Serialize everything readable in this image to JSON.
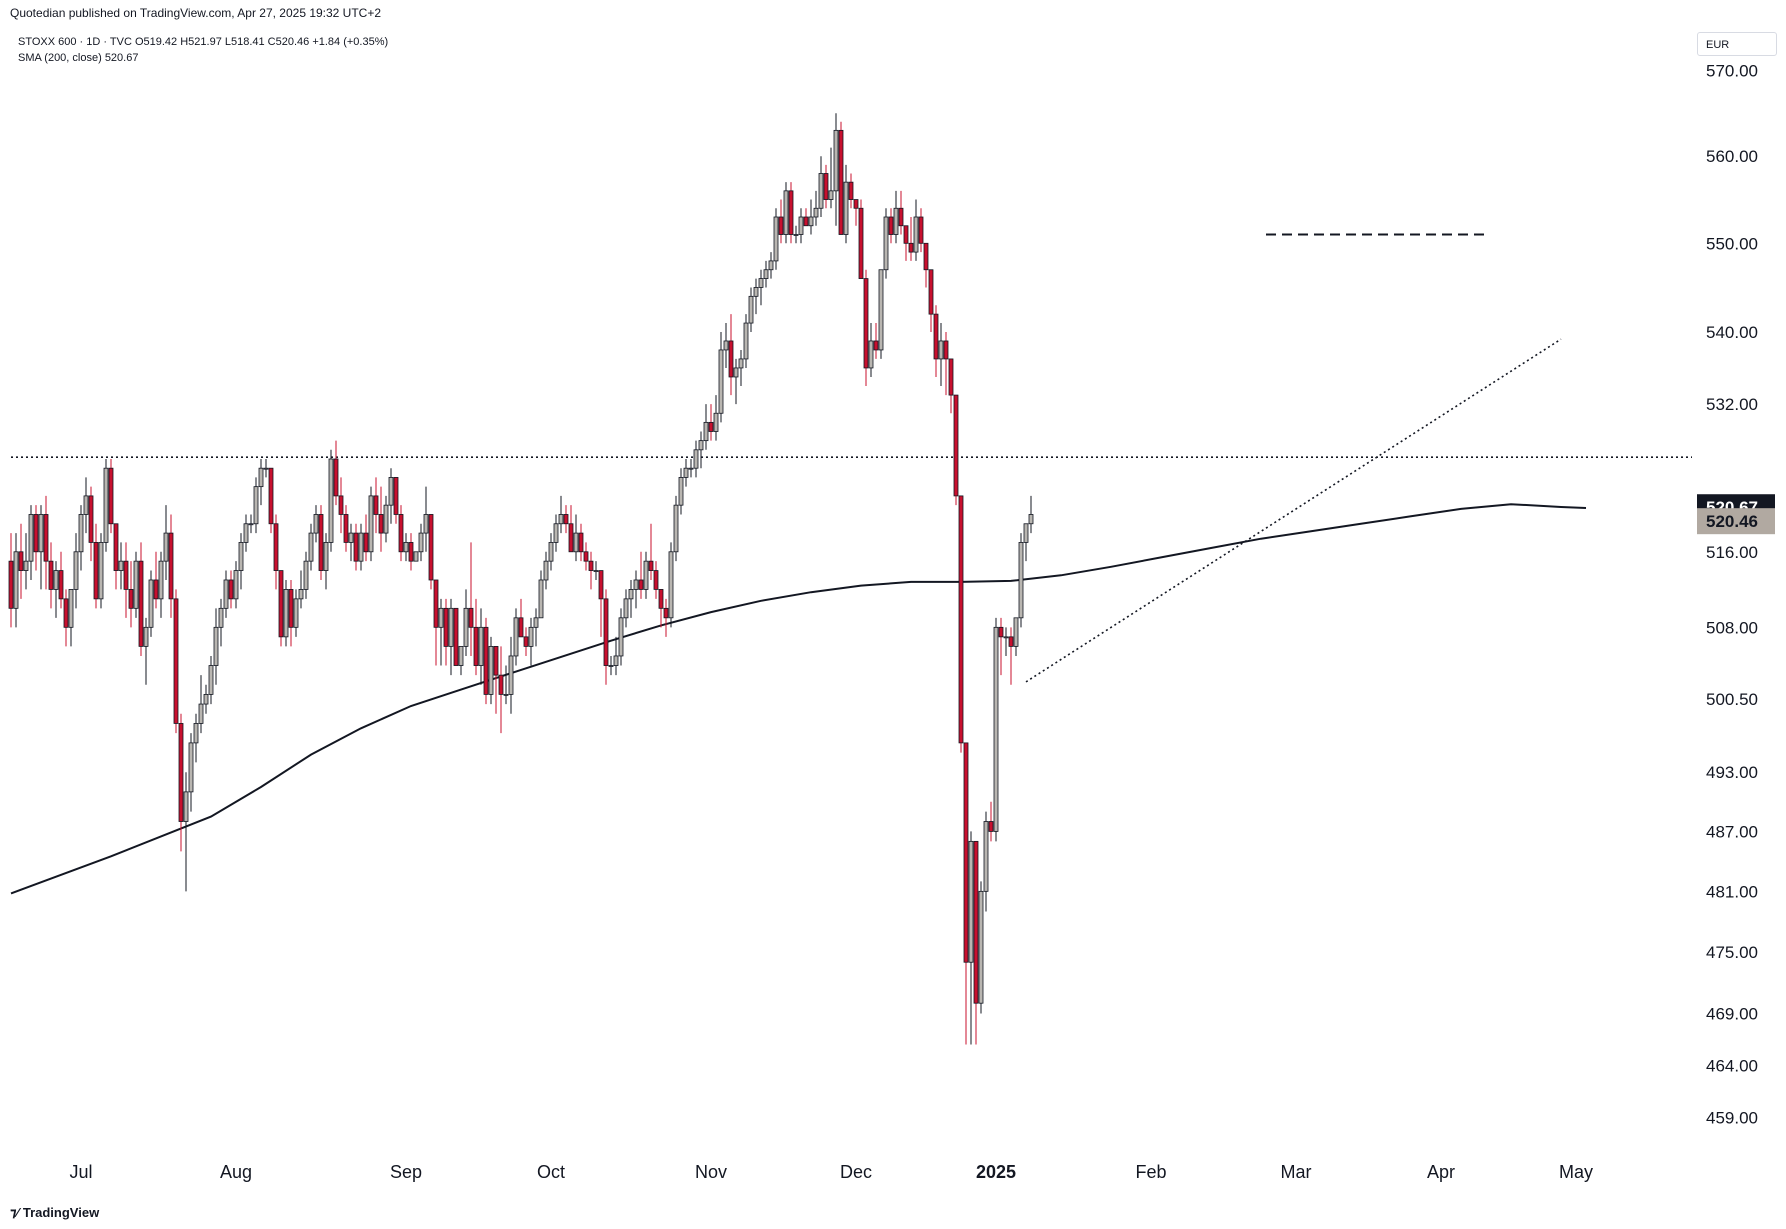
{
  "header": {
    "publisher_line": "Quotedian published on TradingView.com, Apr 27, 2025 19:32 UTC+2"
  },
  "legend": {
    "line1": "STOXX 600 · 1D · TVC  O519.42  H521.97  L518.41  C520.46  +1.84 (+0.35%)",
    "line2": "SMA (200, close)  520.67"
  },
  "currency": "EUR",
  "footer": {
    "brand": "TradingView",
    "brand_icon": "tradingview-logo-icon"
  },
  "colors": {
    "up_fill": "#b9b6b1",
    "down_fill": "#c8102e",
    "outline": "#131722",
    "sma": "#131722",
    "sma_label_bg": "#131722",
    "price_label_bg": "#b1a9a1"
  },
  "chart_data": {
    "type": "candlestick",
    "title": "",
    "xlabel": "",
    "ylabel": "",
    "ylim": [
      455,
      576
    ],
    "y_scale": "log",
    "yticks": [
      "570.00",
      "560.00",
      "550.00",
      "540.00",
      "532.00",
      "520.67",
      "520.46",
      "516.00",
      "508.00",
      "500.50",
      "493.00",
      "487.00",
      "481.00",
      "475.00",
      "469.00",
      "464.00",
      "459.00"
    ],
    "xticks": [
      {
        "label": "Jul",
        "i": 14
      },
      {
        "label": "Aug",
        "i": 45
      },
      {
        "label": "Sep",
        "i": 79
      },
      {
        "label": "Oct",
        "i": 108
      },
      {
        "label": "Nov",
        "i": 140
      },
      {
        "label": "Dec",
        "i": 169
      },
      {
        "label": "2025",
        "i": 197
      },
      {
        "label": "Feb",
        "i": 228
      },
      {
        "label": "Mar",
        "i": 257
      },
      {
        "label": "Apr",
        "i": 286
      },
      {
        "label": "May",
        "i": 313
      }
    ],
    "ohlc": [
      [
        515,
        518,
        508,
        510
      ],
      [
        510,
        518,
        508,
        516
      ],
      [
        516,
        519,
        511,
        514
      ],
      [
        514,
        518,
        512,
        515
      ],
      [
        515,
        521,
        513,
        520
      ],
      [
        520,
        521,
        514,
        516
      ],
      [
        516,
        521,
        512,
        520
      ],
      [
        520,
        522,
        512,
        515
      ],
      [
        515,
        517,
        510,
        512
      ],
      [
        512,
        515,
        509,
        514
      ],
      [
        514,
        516,
        510,
        511
      ],
      [
        511,
        512,
        506,
        508
      ],
      [
        508,
        512,
        506,
        512
      ],
      [
        512,
        518,
        510,
        516
      ],
      [
        516,
        521,
        514,
        520
      ],
      [
        520,
        524,
        518,
        522
      ],
      [
        522,
        523,
        515,
        517
      ],
      [
        517,
        519,
        510,
        511
      ],
      [
        511,
        518,
        510,
        517
      ],
      [
        517,
        526,
        516,
        525
      ],
      [
        525,
        526,
        518,
        519
      ],
      [
        519,
        519,
        512,
        514
      ],
      [
        514,
        517,
        512,
        515
      ],
      [
        515,
        517,
        509,
        512
      ],
      [
        512,
        515,
        508,
        510
      ],
      [
        510,
        516,
        509,
        515
      ],
      [
        515,
        517,
        505,
        506
      ],
      [
        506,
        509,
        502,
        508
      ],
      [
        508,
        514,
        507,
        513
      ],
      [
        513,
        516,
        510,
        511
      ],
      [
        511,
        516,
        509,
        515
      ],
      [
        515,
        521,
        513,
        518
      ],
      [
        518,
        520,
        509,
        511
      ],
      [
        511,
        512,
        497,
        498
      ],
      [
        498,
        499,
        485,
        488
      ],
      [
        488,
        493,
        481,
        491
      ],
      [
        491,
        497,
        489,
        496
      ],
      [
        496,
        499,
        494,
        498
      ],
      [
        498,
        503,
        497,
        500
      ],
      [
        500,
        502,
        499,
        501
      ],
      [
        501,
        505,
        500,
        504
      ],
      [
        504,
        510,
        502,
        508
      ],
      [
        508,
        511,
        506,
        510
      ],
      [
        510,
        514,
        509,
        513
      ],
      [
        513,
        514,
        510,
        511
      ],
      [
        511,
        515,
        510,
        514
      ],
      [
        514,
        518,
        512,
        517
      ],
      [
        517,
        520,
        516,
        519
      ],
      [
        519,
        520,
        518,
        519
      ],
      [
        519,
        524,
        518,
        523
      ],
      [
        523,
        526,
        521,
        525
      ],
      [
        525,
        526,
        524,
        525
      ],
      [
        525,
        525,
        518,
        519
      ],
      [
        519,
        520,
        512,
        514
      ],
      [
        514,
        514,
        506,
        507
      ],
      [
        507,
        513,
        506,
        512
      ],
      [
        512,
        513,
        506,
        508
      ],
      [
        508,
        512,
        507,
        511
      ],
      [
        511,
        514,
        510,
        512
      ],
      [
        512,
        516,
        511,
        515
      ],
      [
        515,
        519,
        514,
        518
      ],
      [
        518,
        521,
        517,
        520
      ],
      [
        520,
        521,
        513,
        514
      ],
      [
        514,
        518,
        512,
        517
      ],
      [
        517,
        527,
        516,
        526
      ],
      [
        526,
        528,
        521,
        522
      ],
      [
        522,
        524,
        518,
        520
      ],
      [
        520,
        521,
        516,
        517
      ],
      [
        517,
        519,
        515,
        518
      ],
      [
        518,
        519,
        514,
        515
      ],
      [
        515,
        519,
        514,
        518
      ],
      [
        518,
        520,
        515,
        516
      ],
      [
        516,
        523,
        515,
        522
      ],
      [
        522,
        524,
        518,
        520
      ],
      [
        520,
        523,
        516,
        518
      ],
      [
        518,
        522,
        517,
        521
      ],
      [
        521,
        525,
        519,
        524
      ],
      [
        524,
        524,
        519,
        520
      ],
      [
        520,
        521,
        515,
        516
      ],
      [
        516,
        518,
        515,
        517
      ],
      [
        517,
        518,
        514,
        515
      ],
      [
        515,
        516,
        515,
        516
      ],
      [
        516,
        519,
        515,
        518
      ],
      [
        518,
        523,
        516,
        520
      ],
      [
        520,
        520,
        512,
        513
      ],
      [
        513,
        513,
        504,
        508
      ],
      [
        508,
        511,
        504,
        510
      ],
      [
        510,
        511,
        504,
        506
      ],
      [
        506,
        511,
        503,
        510
      ],
      [
        510,
        510,
        504,
        504
      ],
      [
        504,
        506,
        503,
        506
      ],
      [
        506,
        512,
        505,
        510
      ],
      [
        510,
        517,
        505,
        508
      ],
      [
        508,
        511,
        503,
        504
      ],
      [
        504,
        510,
        502,
        508
      ],
      [
        508,
        509,
        500,
        501
      ],
      [
        501,
        507,
        500,
        506
      ],
      [
        506,
        506,
        499,
        503
      ],
      [
        503,
        506,
        497,
        501
      ],
      [
        501,
        504,
        500,
        501
      ],
      [
        501,
        507,
        499,
        505
      ],
      [
        505,
        510,
        504,
        509
      ],
      [
        509,
        511,
        507,
        507
      ],
      [
        507,
        508,
        505,
        506
      ],
      [
        506,
        509,
        504,
        508
      ],
      [
        508,
        510,
        506,
        509
      ],
      [
        509,
        514,
        509,
        513
      ],
      [
        513,
        516,
        512,
        515
      ],
      [
        515,
        518,
        514,
        517
      ],
      [
        517,
        520,
        516,
        519
      ],
      [
        519,
        522,
        518,
        520
      ],
      [
        520,
        521,
        518,
        519
      ],
      [
        519,
        521,
        516,
        516
      ],
      [
        516,
        520,
        515,
        518
      ],
      [
        518,
        519,
        515,
        516
      ],
      [
        516,
        517,
        514,
        515
      ],
      [
        515,
        516,
        512,
        514
      ],
      [
        514,
        515,
        513,
        514
      ],
      [
        514,
        514,
        507,
        511
      ],
      [
        511,
        512,
        502,
        504
      ],
      [
        504,
        505,
        503,
        504
      ],
      [
        504,
        507,
        503,
        505
      ],
      [
        505,
        510,
        504,
        509
      ],
      [
        509,
        512,
        508,
        511
      ],
      [
        511,
        513,
        509,
        512
      ],
      [
        512,
        514,
        510,
        513
      ],
      [
        513,
        516,
        511,
        512
      ],
      [
        512,
        516,
        511,
        515
      ],
      [
        515,
        519,
        513,
        514
      ],
      [
        514,
        515,
        511,
        512
      ],
      [
        512,
        512,
        508,
        510
      ],
      [
        510,
        511,
        507,
        509
      ],
      [
        509,
        517,
        508,
        516
      ],
      [
        516,
        522,
        515,
        521
      ],
      [
        521,
        525,
        520,
        524
      ],
      [
        524,
        526,
        523,
        525
      ],
      [
        525,
        526,
        524,
        525
      ],
      [
        525,
        528,
        524,
        527
      ],
      [
        527,
        529,
        525,
        528
      ],
      [
        528,
        532,
        527,
        530
      ],
      [
        530,
        532,
        528,
        529
      ],
      [
        529,
        533,
        528,
        531
      ],
      [
        531,
        540,
        530,
        538
      ],
      [
        538,
        541,
        536,
        539
      ],
      [
        539,
        542,
        533,
        535
      ],
      [
        535,
        537,
        532,
        536
      ],
      [
        536,
        538,
        534,
        537
      ],
      [
        537,
        542,
        536,
        541
      ],
      [
        541,
        545,
        540,
        544
      ],
      [
        544,
        546,
        542,
        545
      ],
      [
        545,
        547,
        543,
        546
      ],
      [
        546,
        548,
        545,
        547
      ],
      [
        547,
        549,
        546,
        548
      ],
      [
        548,
        554,
        547,
        553
      ],
      [
        553,
        555,
        550,
        551
      ],
      [
        551,
        557,
        550,
        556
      ],
      [
        556,
        557,
        550,
        551
      ],
      [
        551,
        552,
        550,
        551
      ],
      [
        551,
        554,
        550,
        553
      ],
      [
        553,
        554,
        552,
        552
      ],
      [
        552,
        555,
        551,
        553
      ],
      [
        553,
        556,
        552,
        554
      ],
      [
        554,
        560,
        553,
        558
      ],
      [
        558,
        559,
        554,
        555
      ],
      [
        555,
        561,
        554,
        556
      ],
      [
        556,
        565,
        552,
        563
      ],
      [
        563,
        564,
        551,
        551
      ],
      [
        551,
        559,
        550,
        557
      ],
      [
        557,
        558,
        554,
        555
      ],
      [
        555,
        555,
        552,
        554
      ],
      [
        554,
        555,
        546,
        546
      ],
      [
        546,
        547,
        534,
        536
      ],
      [
        536,
        541,
        535,
        539
      ],
      [
        539,
        541,
        537,
        538
      ],
      [
        538,
        547,
        537,
        547
      ],
      [
        547,
        554,
        546,
        553
      ],
      [
        553,
        554,
        550,
        551
      ],
      [
        551,
        556,
        550,
        554
      ],
      [
        554,
        556,
        551,
        552
      ],
      [
        552,
        552,
        548,
        550
      ],
      [
        550,
        553,
        548,
        549
      ],
      [
        549,
        555,
        548,
        553
      ],
      [
        553,
        554,
        549,
        550
      ],
      [
        550,
        550,
        545,
        547
      ],
      [
        547,
        547,
        540,
        542
      ],
      [
        542,
        543,
        535,
        537
      ],
      [
        537,
        541,
        534,
        539
      ],
      [
        539,
        540,
        533,
        537
      ],
      [
        537,
        537,
        531,
        533
      ],
      [
        533,
        533,
        521,
        522
      ],
      [
        522,
        522,
        495,
        496
      ],
      [
        496,
        496,
        466,
        474
      ],
      [
        474,
        487,
        466,
        486
      ],
      [
        486,
        486,
        466,
        470
      ],
      [
        470,
        482,
        469,
        481
      ],
      [
        481,
        489,
        479,
        488
      ],
      [
        488,
        490,
        486,
        487
      ],
      [
        487,
        509,
        486,
        508
      ],
      [
        508,
        509,
        503,
        507
      ],
      [
        507,
        508,
        505,
        507
      ],
      [
        507,
        508,
        502,
        506
      ],
      [
        506,
        509,
        505,
        509
      ],
      [
        509,
        518,
        508,
        517
      ],
      [
        517,
        519,
        515,
        519
      ],
      [
        519,
        522,
        518,
        520
      ]
    ],
    "sma": [
      [
        0,
        480.8
      ],
      [
        20,
        484.5
      ],
      [
        40,
        488.5
      ],
      [
        50,
        491.5
      ],
      [
        60,
        494.8
      ],
      [
        70,
        497.5
      ],
      [
        80,
        499.8
      ],
      [
        90,
        501.5
      ],
      [
        100,
        503.2
      ],
      [
        110,
        504.9
      ],
      [
        120,
        506.6
      ],
      [
        130,
        508.2
      ],
      [
        140,
        509.6
      ],
      [
        150,
        510.8
      ],
      [
        160,
        511.7
      ],
      [
        170,
        512.4
      ],
      [
        180,
        512.8
      ],
      [
        190,
        512.8
      ],
      [
        200,
        512.9
      ],
      [
        210,
        513.5
      ],
      [
        220,
        514.4
      ],
      [
        230,
        515.4
      ],
      [
        240,
        516.4
      ],
      [
        250,
        517.4
      ],
      [
        260,
        518.2
      ],
      [
        270,
        519.0
      ],
      [
        280,
        519.8
      ],
      [
        290,
        520.6
      ],
      [
        300,
        521.1
      ],
      [
        310,
        520.8
      ],
      [
        315,
        520.7
      ]
    ],
    "overlays": [
      {
        "name": "resistance-line",
        "style": "dotted",
        "points": [
          [
            0,
            526.2
          ],
          [
            345,
            526.2
          ]
        ]
      },
      {
        "name": "double-top-neckline",
        "style": "dashed",
        "points": [
          [
            251,
            551.0
          ],
          [
            295,
            551.0
          ]
        ]
      },
      {
        "name": "uptrend-line",
        "style": "dotted",
        "points": [
          [
            203,
            502.3
          ],
          [
            310,
            539.2
          ]
        ]
      }
    ],
    "price_labels": [
      {
        "value": "520.67",
        "y": 520.67,
        "role": "sma"
      },
      {
        "value": "520.46",
        "y": 520.46,
        "role": "price"
      }
    ]
  }
}
